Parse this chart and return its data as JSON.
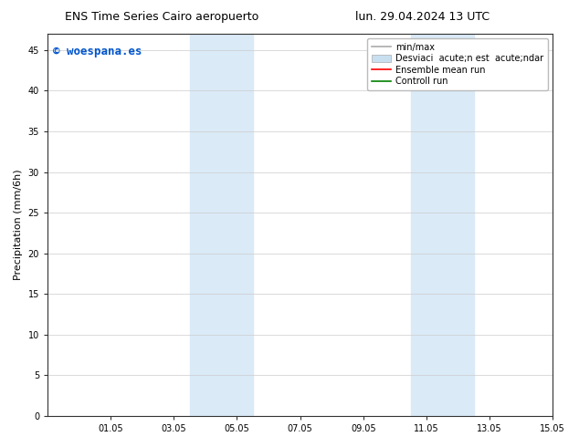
{
  "title_left": "ENS Time Series Cairo aeropuerto",
  "title_right": "lun. 29.04.2024 13 UTC",
  "ylabel": "Precipitation (mm/6h)",
  "ylim": [
    0,
    47
  ],
  "yticks": [
    0,
    5,
    10,
    15,
    20,
    25,
    30,
    35,
    40,
    45
  ],
  "xtick_labels": [
    "01.05",
    "03.05",
    "05.05",
    "07.05",
    "09.05",
    "11.05",
    "13.05",
    "15.05"
  ],
  "xtick_positions": [
    2,
    4,
    6,
    8,
    10,
    12,
    14,
    16
  ],
  "xlim": [
    0,
    16
  ],
  "bg_color": "#ffffff",
  "plot_bg_color": "#ffffff",
  "shade_color": "#daeaf7",
  "shade1_x0": 4.5,
  "shade1_x1": 6.5,
  "shade2_x0": 11.5,
  "shade2_x1": 13.5,
  "watermark_text": "© woespana.es",
  "watermark_color": "#0055cc",
  "legend_minmax_color": "#aaaaaa",
  "legend_std_color": "#c8dff0",
  "legend_ens_color": "#ff0000",
  "legend_ctrl_color": "#008000",
  "legend_label_minmax": "min/max",
  "legend_label_std": "Desviaci  acute;n est  acute;ndar",
  "legend_label_ens": "Ensemble mean run",
  "legend_label_ctrl": "Controll run",
  "legend_prefix": "Desviaci",
  "grid_color": "#cccccc",
  "spine_color": "#333333",
  "tick_fontsize": 7,
  "ylabel_fontsize": 8,
  "title_fontsize": 9,
  "watermark_fontsize": 9,
  "legend_fontsize": 7
}
